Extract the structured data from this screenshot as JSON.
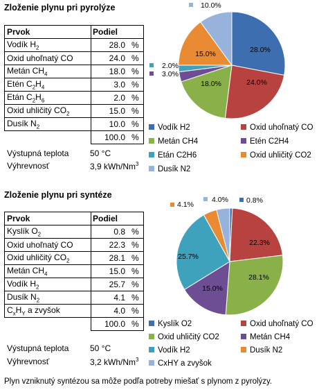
{
  "pyrolysis": {
    "title": "Zloženie plynu pri pyrolýze",
    "header": {
      "element": "Prvok",
      "share": "Podiel"
    },
    "rows": [
      {
        "name": "Vodík H",
        "sub": "2",
        "value": "28.0",
        "unit": "%"
      },
      {
        "name": "Oxid uhoľnatý CO",
        "sub": "",
        "value": "24.0",
        "unit": "%"
      },
      {
        "name": "Metán CH",
        "sub": "4",
        "value": "18.0",
        "unit": "%"
      },
      {
        "name": "Etén C",
        "sub": "2",
        "mid": "H",
        "sub2": "4",
        "value": "3.0",
        "unit": "%"
      },
      {
        "name": "Etán C",
        "sub": "2",
        "mid": "H",
        "sub2": "6",
        "value": "2.0",
        "unit": "%"
      },
      {
        "name": "Oxid uhličitý CO",
        "sub": "2",
        "value": "15.0",
        "unit": "%"
      },
      {
        "name": "Dusík N",
        "sub": "2",
        "value": "10.0",
        "unit": "%"
      }
    ],
    "total": {
      "value": "100.0",
      "unit": "%"
    },
    "temp_label": "Výstupná teplota",
    "temp_value": "50 °C",
    "heat_label": "Výhrevnosť",
    "heat_value": "3,9 kWh/Nm",
    "heat_sup": "3"
  },
  "synthesis": {
    "title": "Zloženie plynu pri syntéze",
    "header": {
      "element": "Prvok",
      "share": "Podiel"
    },
    "rows": [
      {
        "name": "Kyslík O",
        "sub": "2",
        "value": "0.8",
        "unit": "%"
      },
      {
        "name": "Oxid uhoľnatý CO",
        "sub": "",
        "value": "22.3",
        "unit": "%"
      },
      {
        "name": "Oxid uhličitý CO",
        "sub": "2",
        "value": "28.1",
        "unit": "%"
      },
      {
        "name": "Metán CH",
        "sub": "4",
        "value": "15.0",
        "unit": "%"
      },
      {
        "name": "Vodík H",
        "sub": "2",
        "value": "25.7",
        "unit": "%"
      },
      {
        "name": "Dusík N",
        "sub": "2",
        "value": "4.1",
        "unit": "%"
      },
      {
        "name": "C",
        "sub": "x",
        "mid": "H",
        "sub2": "Y",
        "tail": " a zvyšok",
        "value": "4.0",
        "unit": "%"
      }
    ],
    "total": {
      "value": "100.0",
      "unit": "%"
    },
    "temp_label": "Výstupná teplota",
    "temp_value": "50 °C",
    "heat_label": "Výhrevnosť",
    "heat_value": "3,2 kWh/Nm",
    "heat_sup": "3"
  },
  "footer": "Plyn vzniknutý syntézou sa môže podľa potreby miešať s plynom z pyrolýzy.",
  "chart_data": [
    {
      "type": "pie",
      "title": "",
      "categories": [
        "Vodík H2",
        "Oxid uhoľnatý CO",
        "Metán CH4",
        "Etén C2H4",
        "Etán C2H6",
        "Oxid uhličitý CO2",
        "Dusík N2"
      ],
      "values": [
        28.0,
        24.0,
        18.0,
        3.0,
        2.0,
        15.0,
        10.0
      ],
      "labels": [
        "28.0%",
        "24.0%",
        "18.0%",
        "3.0%",
        "2.0%",
        "15.0%",
        "10.0%"
      ],
      "colors": [
        "#3d6fb0",
        "#b84240",
        "#8ab04a",
        "#6d4e95",
        "#3ea2bd",
        "#e88b33",
        "#98b3db"
      ],
      "legend": "bottom"
    },
    {
      "type": "pie",
      "title": "",
      "categories": [
        "Kyslík O2",
        "Oxid uhoľnatý CO",
        "Oxid uhličitý CO2",
        "Metán CH4",
        "Vodík H2",
        "Dusík N2",
        "CxHY a zvyšok"
      ],
      "values": [
        0.8,
        22.3,
        28.1,
        15.0,
        25.7,
        4.1,
        4.0
      ],
      "labels": [
        "0.8%",
        "22.3%",
        "28.1%",
        "15.0%",
        "25.7%",
        "4.1%",
        "4.0%"
      ],
      "colors": [
        "#3d6fb0",
        "#b84240",
        "#8ab04a",
        "#6d4e95",
        "#3ea2bd",
        "#e88b33",
        "#98b3db"
      ],
      "legend": "bottom"
    }
  ]
}
